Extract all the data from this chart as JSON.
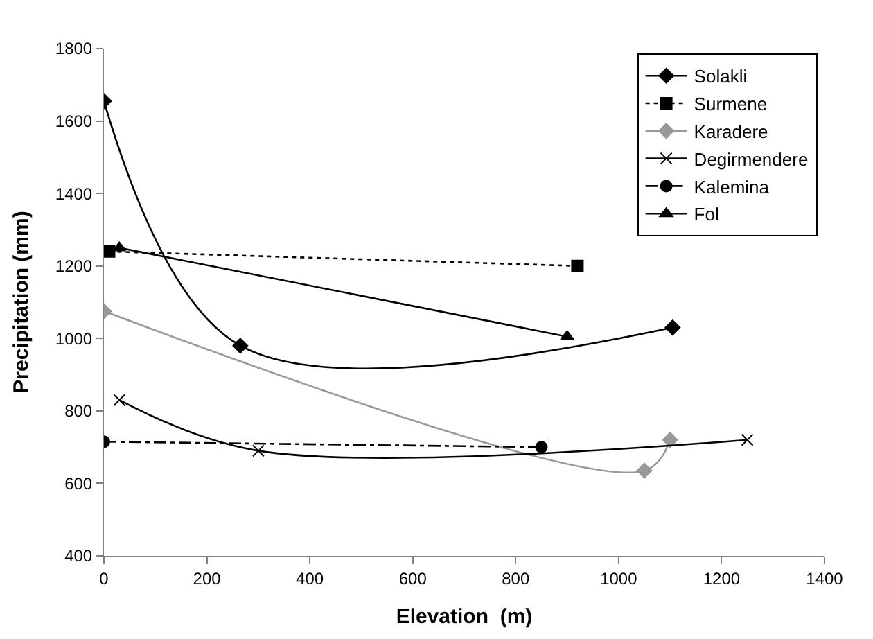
{
  "chart_data": {
    "type": "line",
    "xlabel": "Elevation  (m)",
    "ylabel": "Precipitation (mm)",
    "xlim": [
      0,
      1400
    ],
    "xticks": [
      0,
      200,
      400,
      600,
      800,
      1000,
      1200,
      1400
    ],
    "ylim": [
      400,
      1800
    ],
    "yticks": [
      400,
      600,
      800,
      1000,
      1200,
      1400,
      1600,
      1800
    ],
    "legend": "top right",
    "series": [
      {
        "name": "Solakli",
        "color": "#000000",
        "marker": "diamond",
        "line_style": "solid",
        "x": [
          0,
          265,
          1105
        ],
        "values": [
          1655,
          980,
          1030
        ]
      },
      {
        "name": "Surmene",
        "color": "#000000",
        "marker": "square",
        "line_style": "dotted",
        "x": [
          10,
          920
        ],
        "values": [
          1240,
          1200
        ]
      },
      {
        "name": "Karadere",
        "color": "#999999",
        "marker": "diamond",
        "line_style": "solid",
        "x": [
          0,
          1050,
          1100
        ],
        "values": [
          1075,
          635,
          720
        ]
      },
      {
        "name": "Degirmendere",
        "color": "#000000",
        "marker": "cross",
        "line_style": "solid",
        "x": [
          30,
          300,
          1250
        ],
        "values": [
          830,
          690,
          720
        ]
      },
      {
        "name": "Kalemina",
        "color": "#000000",
        "marker": "circle",
        "line_style": "dashed",
        "x": [
          0,
          850
        ],
        "values": [
          715,
          700
        ]
      },
      {
        "name": "Fol",
        "color": "#000000",
        "marker": "triangle",
        "line_style": "solid",
        "x": [
          30,
          900
        ],
        "values": [
          1250,
          1005
        ]
      }
    ]
  }
}
